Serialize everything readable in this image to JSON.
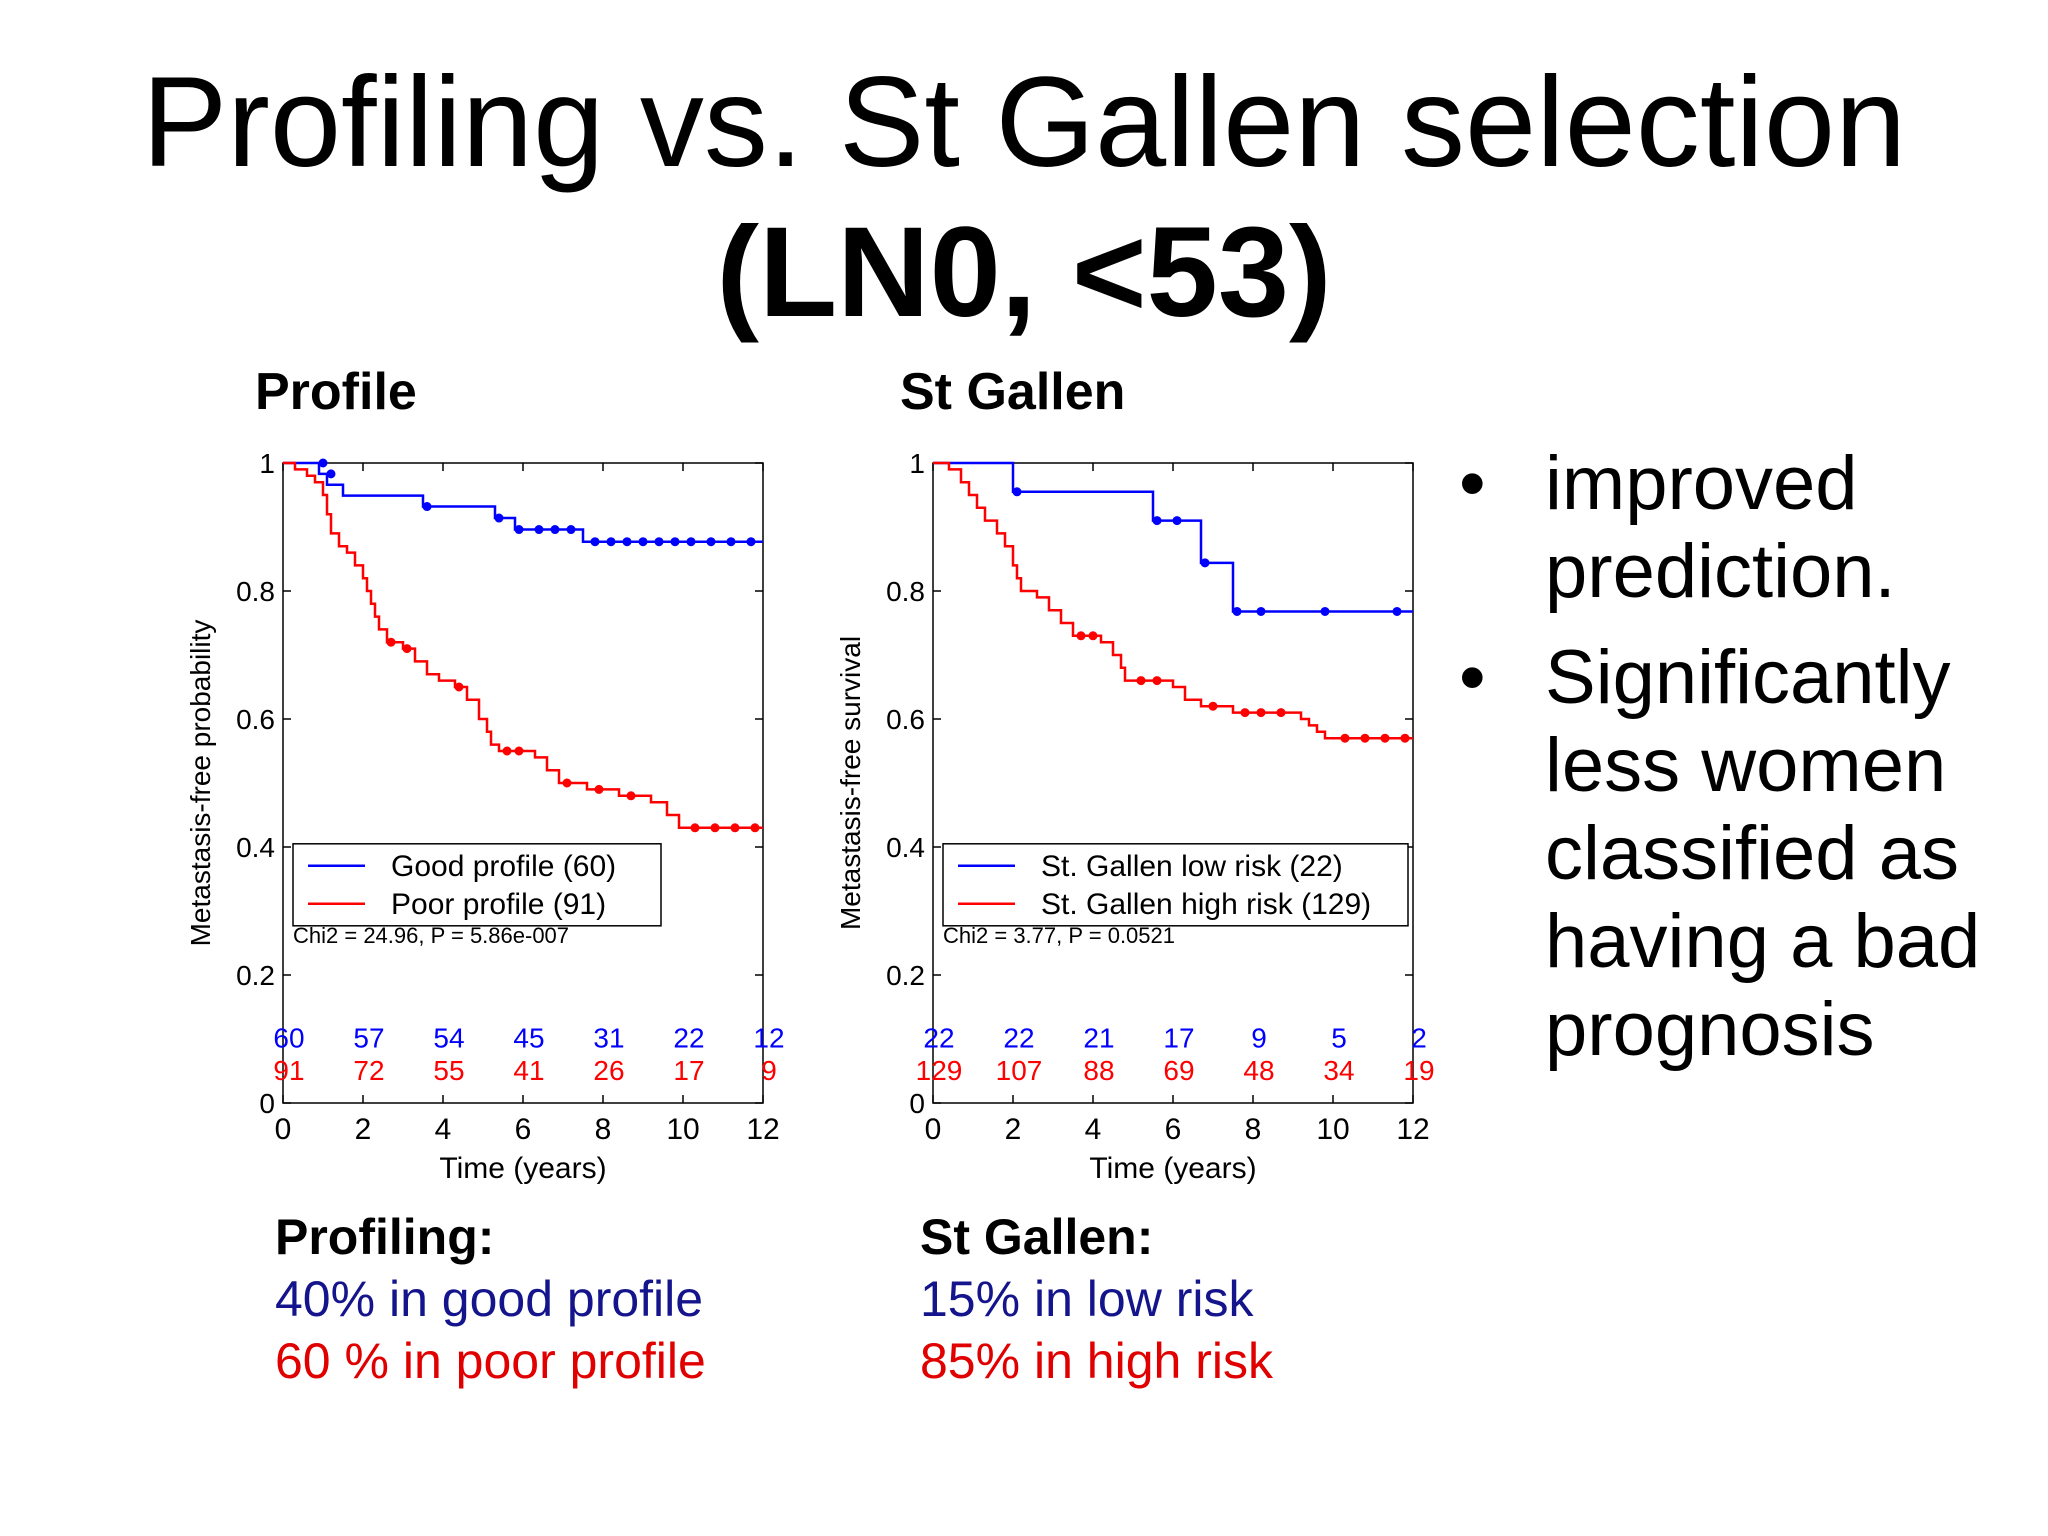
{
  "title_line1": "Profiling vs. St Gallen selection",
  "title_line2": "(LN0, <53)",
  "headings": {
    "profile": "Profile",
    "stgallen": "St Gallen"
  },
  "bullets": [
    "improved prediction.",
    "Significantly less women classified as having a bad prognosis"
  ],
  "summary_profile": {
    "title": "Profiling:",
    "good": "40% in good profile",
    "poor": "60 % in poor profile"
  },
  "summary_stgallen": {
    "title": "St Gallen:",
    "good": "15% in low risk",
    "poor": "85% in high risk"
  },
  "colors": {
    "good": "#0000ff",
    "poor": "#ff0000"
  },
  "chart_data": [
    {
      "type": "line",
      "xlabel": "Time (years)",
      "ylabel": "Metastasis-free probability",
      "xlim": [
        0,
        12
      ],
      "ylim": [
        0,
        1
      ],
      "xticks": [
        "0",
        "2",
        "4",
        "6",
        "8",
        "10",
        "12"
      ],
      "yticks": [
        "0",
        "0.2",
        "0.4",
        "0.6",
        "0.8",
        "1"
      ],
      "stat": "Chi2 = 24.96, P = 5.86e-007",
      "legend_position": "lower-left",
      "series": [
        {
          "name": "Good profile (60)",
          "color": "#0000ff",
          "steps": [
            [
              0,
              1
            ],
            [
              0.9,
              0.983
            ],
            [
              1.1,
              0.966
            ],
            [
              1.5,
              0.949
            ],
            [
              3.5,
              0.932
            ],
            [
              5.3,
              0.914
            ],
            [
              5.8,
              0.896
            ],
            [
              7.5,
              0.877
            ],
            [
              12,
              0.877
            ]
          ],
          "censored": [
            [
              1,
              1
            ],
            [
              1.2,
              0.983
            ],
            [
              3.6,
              0.932
            ],
            [
              5.4,
              0.914
            ],
            [
              5.9,
              0.896
            ],
            [
              6.4,
              0.896
            ],
            [
              6.8,
              0.896
            ],
            [
              7.2,
              0.896
            ],
            [
              7.8,
              0.877
            ],
            [
              8.2,
              0.877
            ],
            [
              8.6,
              0.877
            ],
            [
              9,
              0.877
            ],
            [
              9.4,
              0.877
            ],
            [
              9.8,
              0.877
            ],
            [
              10.2,
              0.877
            ],
            [
              10.7,
              0.877
            ],
            [
              11.2,
              0.877
            ],
            [
              11.7,
              0.877
            ]
          ]
        },
        {
          "name": "Poor profile (91)",
          "color": "#ff0000",
          "steps": [
            [
              0,
              1
            ],
            [
              0.3,
              0.99
            ],
            [
              0.6,
              0.98
            ],
            [
              0.8,
              0.97
            ],
            [
              1,
              0.95
            ],
            [
              1.1,
              0.92
            ],
            [
              1.2,
              0.89
            ],
            [
              1.4,
              0.87
            ],
            [
              1.6,
              0.86
            ],
            [
              1.8,
              0.84
            ],
            [
              2,
              0.82
            ],
            [
              2.1,
              0.8
            ],
            [
              2.2,
              0.78
            ],
            [
              2.3,
              0.76
            ],
            [
              2.4,
              0.74
            ],
            [
              2.6,
              0.72
            ],
            [
              3,
              0.71
            ],
            [
              3.3,
              0.69
            ],
            [
              3.6,
              0.67
            ],
            [
              3.9,
              0.66
            ],
            [
              4.3,
              0.65
            ],
            [
              4.6,
              0.63
            ],
            [
              4.9,
              0.6
            ],
            [
              5.1,
              0.58
            ],
            [
              5.2,
              0.56
            ],
            [
              5.4,
              0.55
            ],
            [
              6.3,
              0.54
            ],
            [
              6.6,
              0.52
            ],
            [
              6.9,
              0.5
            ],
            [
              7.6,
              0.49
            ],
            [
              8.4,
              0.48
            ],
            [
              9.2,
              0.47
            ],
            [
              9.6,
              0.45
            ],
            [
              9.9,
              0.43
            ],
            [
              12,
              0.43
            ]
          ],
          "censored": [
            [
              2.7,
              0.72
            ],
            [
              3.1,
              0.71
            ],
            [
              4.4,
              0.65
            ],
            [
              5.6,
              0.55
            ],
            [
              5.9,
              0.55
            ],
            [
              7.1,
              0.5
            ],
            [
              7.9,
              0.49
            ],
            [
              8.7,
              0.48
            ],
            [
              10.3,
              0.43
            ],
            [
              10.8,
              0.43
            ],
            [
              11.3,
              0.43
            ],
            [
              11.8,
              0.43
            ]
          ]
        }
      ],
      "at_risk_times": [
        0,
        2,
        4,
        6,
        8,
        10,
        12
      ],
      "at_risk": [
        {
          "color": "#0000ff",
          "values": [
            "60",
            "57",
            "54",
            "45",
            "31",
            "22",
            "12"
          ]
        },
        {
          "color": "#ff0000",
          "values": [
            "91",
            "72",
            "55",
            "41",
            "26",
            "17",
            "9"
          ]
        }
      ]
    },
    {
      "type": "line",
      "xlabel": "Time (years)",
      "ylabel": "Metastasis-free survival",
      "xlim": [
        0,
        12
      ],
      "ylim": [
        0,
        1
      ],
      "xticks": [
        "0",
        "2",
        "4",
        "6",
        "8",
        "10",
        "12"
      ],
      "yticks": [
        "0",
        "0.2",
        "0.4",
        "0.6",
        "0.8",
        "1"
      ],
      "stat": "Chi2 = 3.77, P = 0.0521",
      "legend_position": "lower-left",
      "series": [
        {
          "name": "St. Gallen low risk (22)",
          "color": "#0000ff",
          "steps": [
            [
              0,
              1
            ],
            [
              2,
              0.955
            ],
            [
              5.5,
              0.91
            ],
            [
              6.7,
              0.844
            ],
            [
              7.5,
              0.768
            ],
            [
              12,
              0.768
            ]
          ],
          "censored": [
            [
              2.1,
              0.955
            ],
            [
              5.6,
              0.91
            ],
            [
              6.1,
              0.91
            ],
            [
              6.8,
              0.844
            ],
            [
              7.6,
              0.768
            ],
            [
              8.2,
              0.768
            ],
            [
              9.8,
              0.768
            ],
            [
              11.6,
              0.768
            ]
          ]
        },
        {
          "name": "St. Gallen high risk (129)",
          "color": "#ff0000",
          "steps": [
            [
              0,
              1
            ],
            [
              0.4,
              0.99
            ],
            [
              0.7,
              0.97
            ],
            [
              0.9,
              0.95
            ],
            [
              1.1,
              0.93
            ],
            [
              1.3,
              0.91
            ],
            [
              1.6,
              0.89
            ],
            [
              1.8,
              0.87
            ],
            [
              2,
              0.84
            ],
            [
              2.1,
              0.82
            ],
            [
              2.2,
              0.8
            ],
            [
              2.6,
              0.79
            ],
            [
              2.9,
              0.77
            ],
            [
              3.2,
              0.75
            ],
            [
              3.5,
              0.73
            ],
            [
              4.2,
              0.72
            ],
            [
              4.5,
              0.7
            ],
            [
              4.7,
              0.68
            ],
            [
              4.8,
              0.66
            ],
            [
              6,
              0.65
            ],
            [
              6.3,
              0.63
            ],
            [
              6.7,
              0.62
            ],
            [
              7.5,
              0.61
            ],
            [
              9.2,
              0.6
            ],
            [
              9.4,
              0.59
            ],
            [
              9.6,
              0.58
            ],
            [
              9.8,
              0.57
            ],
            [
              12,
              0.57
            ]
          ],
          "censored": [
            [
              3.7,
              0.73
            ],
            [
              4,
              0.73
            ],
            [
              5.2,
              0.66
            ],
            [
              5.6,
              0.66
            ],
            [
              7,
              0.62
            ],
            [
              7.8,
              0.61
            ],
            [
              8.2,
              0.61
            ],
            [
              8.7,
              0.61
            ],
            [
              10.3,
              0.57
            ],
            [
              10.8,
              0.57
            ],
            [
              11.3,
              0.57
            ],
            [
              11.8,
              0.57
            ]
          ]
        }
      ],
      "at_risk_times": [
        0,
        2,
        4,
        6,
        8,
        10,
        12
      ],
      "at_risk": [
        {
          "color": "#0000ff",
          "values": [
            "22",
            "22",
            "21",
            "17",
            "9",
            "5",
            "2"
          ]
        },
        {
          "color": "#ff0000",
          "values": [
            "129",
            "107",
            "88",
            "69",
            "48",
            "34",
            "19"
          ]
        }
      ]
    }
  ]
}
